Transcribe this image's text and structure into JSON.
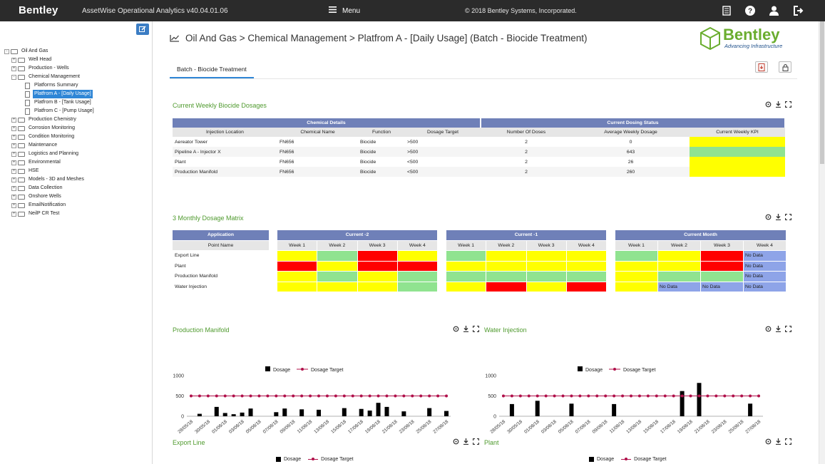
{
  "topbar": {
    "logo": "Bentley",
    "app_title": "AssetWise Operational Analytics v40.04.01.06",
    "menu_label": "Menu",
    "copyright": "© 2018 Bentley Systems, Incorporated."
  },
  "tree": [
    {
      "label": "Oil And Gas",
      "level": 0,
      "type": "folder",
      "exp": "-"
    },
    {
      "label": "Well Head",
      "level": 1,
      "type": "folder",
      "exp": "+"
    },
    {
      "label": "Production - Wells",
      "level": 1,
      "type": "folder",
      "exp": "+"
    },
    {
      "label": "Chemical Management",
      "level": 1,
      "type": "folder",
      "exp": "-"
    },
    {
      "label": "Platforms Summary",
      "level": 2,
      "type": "doc"
    },
    {
      "label": "Platfrom A - [Daily Usage]",
      "level": 2,
      "type": "doc",
      "selected": true
    },
    {
      "label": "Platfrom B - [Tank Usage]",
      "level": 2,
      "type": "doc"
    },
    {
      "label": "Platfrom C - [Pump Usage]",
      "level": 2,
      "type": "doc"
    },
    {
      "label": "Production Chemistry",
      "level": 1,
      "type": "folder",
      "exp": "+"
    },
    {
      "label": "Corrosion Monitoring",
      "level": 1,
      "type": "folder",
      "exp": "+"
    },
    {
      "label": "Condition Monitoring",
      "level": 1,
      "type": "folder",
      "exp": "+"
    },
    {
      "label": "Maintenance",
      "level": 1,
      "type": "folder",
      "exp": "+"
    },
    {
      "label": "Logistics and Planning",
      "level": 1,
      "type": "folder",
      "exp": "+"
    },
    {
      "label": "Environmental",
      "level": 1,
      "type": "folder",
      "exp": "+"
    },
    {
      "label": "HSE",
      "level": 1,
      "type": "folder",
      "exp": "+"
    },
    {
      "label": "Models - 3D and Meshes",
      "level": 1,
      "type": "folder",
      "exp": "+"
    },
    {
      "label": "Data Collection",
      "level": 1,
      "type": "folder",
      "exp": "+"
    },
    {
      "label": "Onshore Wells",
      "level": 1,
      "type": "folder",
      "exp": "+"
    },
    {
      "label": "EmailNotification",
      "level": 1,
      "type": "folder",
      "exp": "+"
    },
    {
      "label": "NeilP CR Test",
      "level": 1,
      "type": "folder",
      "exp": "+"
    }
  ],
  "page": {
    "title": "Oil And Gas > Chemical Management > Platfrom A - [Daily Usage] (Batch - Biocide Treatment)",
    "brand_name": "Bentley",
    "brand_tagline": "Advancing Infrastructure",
    "tab_label": "Batch - Biocide Treatment"
  },
  "weekly": {
    "title": "Current Weekly Biocide Dosages",
    "group_left": "Chemical Details",
    "group_right": "Current Dosing Status",
    "columns": [
      "Injection Location",
      "Chemical Name",
      "Function",
      "Dosage Target",
      "Number Of Doses",
      "Average Weekly Dosage",
      "Current Weekly KPI"
    ],
    "rows": [
      {
        "location": "Aereator Tower",
        "chemical": "FN656",
        "function": "Biocide",
        "target": ">500",
        "doses": "2",
        "avg": "0",
        "kpi": "yellow"
      },
      {
        "location": "Pipeline A - Injector X",
        "chemical": "FN656",
        "function": "Biocide",
        "target": ">500",
        "doses": "2",
        "avg": "643",
        "kpi": "green"
      },
      {
        "location": "Plant",
        "chemical": "FN656",
        "function": "Biocide",
        "target": "<500",
        "doses": "2",
        "avg": "26",
        "kpi": "yellow"
      },
      {
        "location": "Production Manifold",
        "chemical": "FN656",
        "function": "Biocide",
        "target": "<500",
        "doses": "2",
        "avg": "260",
        "kpi": "yellow"
      }
    ]
  },
  "matrix": {
    "title": "3 Monthly Dosage Matrix",
    "app_header": "Application",
    "point_header": "Point Name",
    "points": [
      "Export Line",
      "Plant",
      "Production Manifold",
      "Water Injection"
    ],
    "weeks": [
      "Week 1",
      "Week 2",
      "Week 3",
      "Week 4"
    ],
    "no_data": "No Data",
    "blocks": [
      {
        "name": "Current -2",
        "cells": [
          [
            "Y",
            "G",
            "R",
            "Y"
          ],
          [
            "R",
            "Y",
            "R",
            "R"
          ],
          [
            "Y",
            "G",
            "Y",
            "G"
          ],
          [
            "Y",
            "Y",
            "Y",
            "G"
          ]
        ]
      },
      {
        "name": "Current -1",
        "cells": [
          [
            "G",
            "Y",
            "Y",
            "Y"
          ],
          [
            "Y",
            "Y",
            "Y",
            "Y"
          ],
          [
            "G",
            "G",
            "G",
            "G"
          ],
          [
            "Y",
            "R",
            "Y",
            "R"
          ]
        ]
      },
      {
        "name": "Current Month",
        "cells": [
          [
            "G",
            "Y",
            "R",
            "N"
          ],
          [
            "Y",
            "Y",
            "R",
            "N"
          ],
          [
            "Y",
            "G",
            "G",
            "N"
          ],
          [
            "Y",
            "N",
            "N",
            "N"
          ]
        ]
      }
    ]
  },
  "colors": {
    "yellow": "#ffff00",
    "green": "#90e390",
    "red": "#ff0000",
    "nodata": "#8ea4e8",
    "header": "#6f80b8",
    "target_line": "#b0104a",
    "section_title": "#4f9a2e"
  },
  "chart_data": [
    {
      "type": "bar",
      "title": "Production Manifold",
      "legend": [
        "Dosage",
        "Dosage Target"
      ],
      "x": [
        "28/05/18",
        "29/05/18",
        "30/05/18",
        "31/05/18",
        "01/06/18",
        "02/06/18",
        "03/06/18",
        "04/06/18",
        "05/06/18",
        "06/06/18",
        "07/06/18",
        "08/06/18",
        "09/06/18",
        "10/06/18",
        "11/06/18",
        "12/06/18",
        "13/06/18",
        "14/06/18",
        "15/06/18",
        "16/06/18",
        "17/06/18",
        "18/06/18",
        "19/06/18",
        "20/06/18",
        "21/06/18",
        "22/06/18",
        "23/06/18",
        "24/06/18",
        "25/06/18",
        "26/06/18",
        "27/06/18"
      ],
      "x_tick_labels": [
        "28/05/18",
        "30/05/18",
        "01/06/18",
        "03/06/18",
        "05/06/18",
        "07/06/18",
        "09/06/18",
        "11/06/18",
        "13/06/18",
        "15/06/18",
        "17/06/18",
        "19/06/18",
        "21/06/18",
        "23/06/18",
        "25/06/18",
        "27/06/18"
      ],
      "series": [
        {
          "name": "Dosage",
          "values": [
            0,
            60,
            0,
            230,
            80,
            50,
            90,
            190,
            0,
            0,
            100,
            190,
            0,
            170,
            0,
            160,
            0,
            0,
            200,
            0,
            180,
            140,
            330,
            230,
            0,
            120,
            0,
            0,
            200,
            0,
            130
          ]
        },
        {
          "name": "Dosage Target",
          "values": [
            500,
            500,
            500,
            500,
            500,
            500,
            500,
            500,
            500,
            500,
            500,
            500,
            500,
            500,
            500,
            500,
            500,
            500,
            500,
            500,
            500,
            500,
            500,
            500,
            500,
            500,
            500,
            500,
            500,
            500,
            500
          ]
        }
      ],
      "ylim": [
        0,
        1000
      ],
      "yticks": [
        0,
        500,
        1000
      ]
    },
    {
      "type": "bar",
      "title": "Water Injection",
      "legend": [
        "Dosage",
        "Dosage Target"
      ],
      "x": [
        "28/05/18",
        "29/05/18",
        "30/05/18",
        "31/05/18",
        "01/06/18",
        "02/06/18",
        "03/06/18",
        "04/06/18",
        "05/06/18",
        "06/06/18",
        "07/06/18",
        "08/06/18",
        "09/06/18",
        "10/06/18",
        "11/06/18",
        "12/06/18",
        "13/06/18",
        "14/06/18",
        "15/06/18",
        "16/06/18",
        "17/06/18",
        "18/06/18",
        "19/06/18",
        "20/06/18",
        "21/06/18",
        "22/06/18",
        "23/06/18",
        "24/06/18",
        "25/06/18",
        "26/06/18",
        "27/06/18"
      ],
      "x_tick_labels": [
        "28/05/18",
        "30/05/18",
        "01/06/18",
        "03/06/18",
        "05/06/18",
        "07/06/18",
        "09/06/18",
        "11/06/18",
        "13/06/18",
        "15/06/18",
        "17/06/18",
        "19/06/18",
        "21/06/18",
        "23/06/18",
        "25/06/18",
        "27/06/18"
      ],
      "series": [
        {
          "name": "Dosage",
          "values": [
            0,
            300,
            0,
            0,
            380,
            0,
            0,
            0,
            310,
            0,
            0,
            0,
            0,
            300,
            0,
            0,
            0,
            0,
            0,
            0,
            0,
            620,
            0,
            820,
            0,
            0,
            0,
            0,
            0,
            310,
            0
          ]
        },
        {
          "name": "Dosage Target",
          "values": [
            500,
            500,
            500,
            500,
            500,
            500,
            500,
            500,
            500,
            500,
            500,
            500,
            500,
            500,
            500,
            500,
            500,
            500,
            500,
            500,
            500,
            500,
            500,
            500,
            500,
            500,
            500,
            500,
            500,
            500,
            500
          ]
        }
      ],
      "ylim": [
        0,
        1000
      ],
      "yticks": [
        0,
        500,
        1000
      ]
    }
  ],
  "lower": {
    "left_title": "Export Line",
    "right_title": "Plant",
    "legend_dosage": "Dosage",
    "legend_target": "Dosage Target"
  }
}
